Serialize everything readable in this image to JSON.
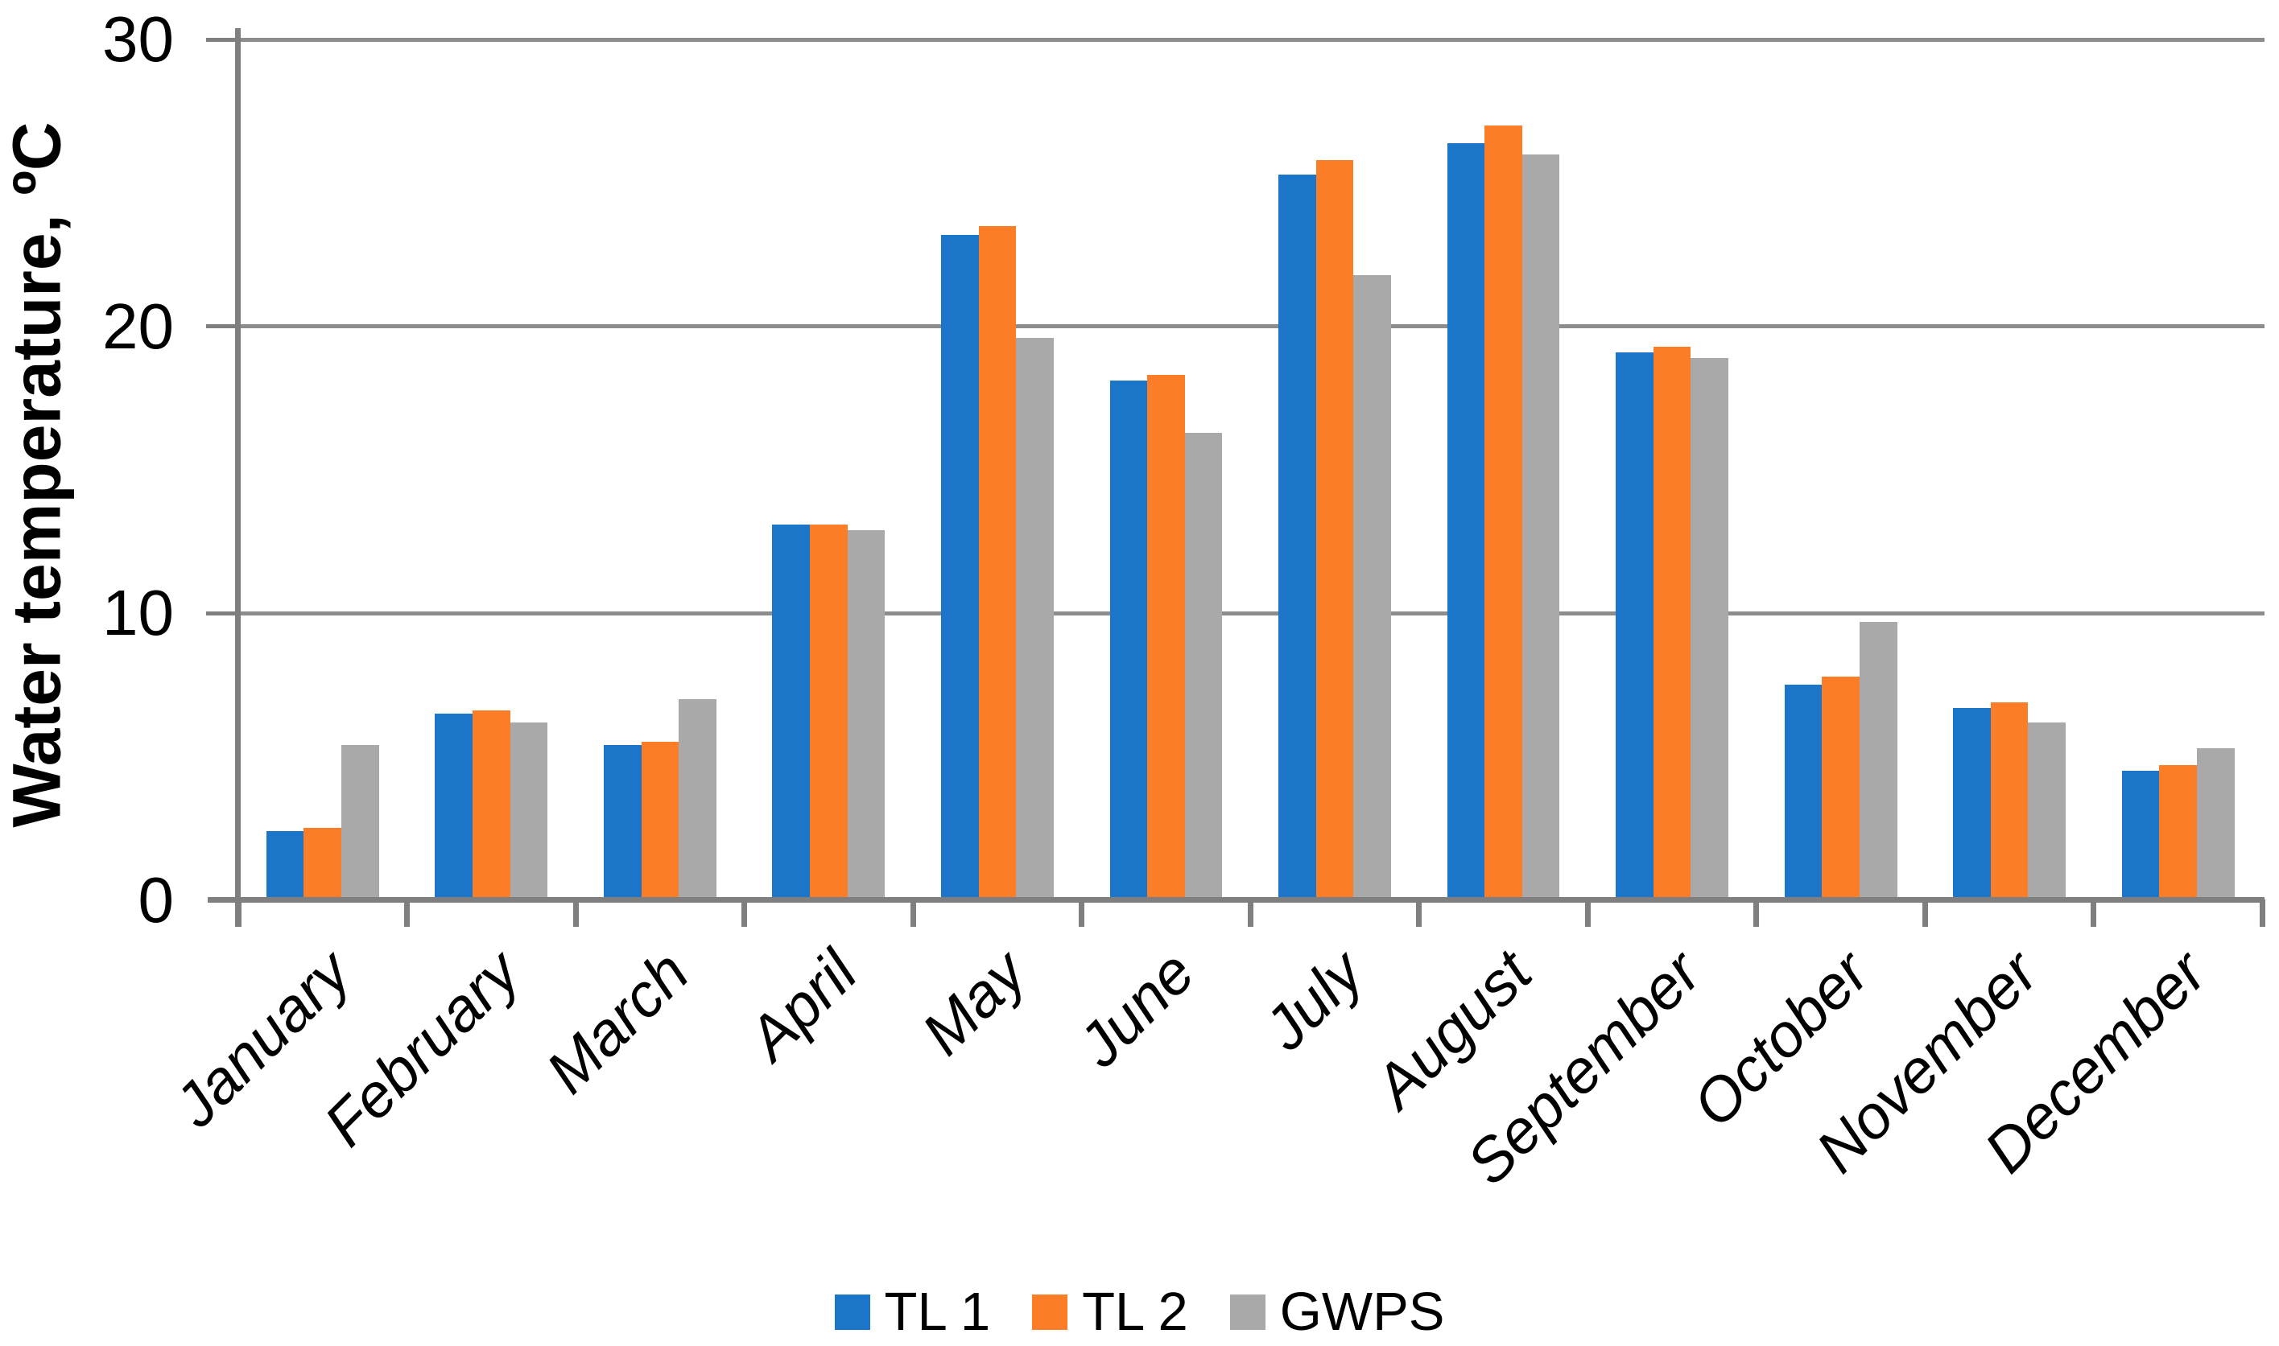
{
  "chart_data": {
    "type": "bar",
    "title": "",
    "xlabel": "",
    "ylabel": "Water temperature, ºC",
    "ylim": [
      0,
      30
    ],
    "yticks": [
      0,
      10,
      20,
      30
    ],
    "ytick_labels": [
      "0",
      "10",
      "20",
      "30"
    ],
    "grid": "horizontal",
    "legend_position": "bottom-center",
    "categories": [
      "January",
      "February",
      "March",
      "April",
      "May",
      "June",
      "July",
      "August",
      "September",
      "October",
      "November",
      "December"
    ],
    "series": [
      {
        "name": "TL 1",
        "color": "#1B75C9",
        "values": [
          2.4,
          6.5,
          5.4,
          13.1,
          23.2,
          18.1,
          25.3,
          26.4,
          19.1,
          7.5,
          6.7,
          4.5
        ]
      },
      {
        "name": "TL 2",
        "color": "#FB7D27",
        "values": [
          2.5,
          6.6,
          5.5,
          13.1,
          23.5,
          18.3,
          25.8,
          27.0,
          19.3,
          7.8,
          6.9,
          4.7
        ]
      },
      {
        "name": "GWPS",
        "color": "#A9A9A9",
        "values": [
          5.4,
          6.2,
          7.0,
          12.9,
          19.6,
          16.3,
          21.8,
          26.0,
          18.9,
          9.7,
          6.2,
          5.3
        ]
      }
    ],
    "colors": {
      "axis": "#7F7F7F",
      "gridline": "#8C8C8C",
      "text": "#000000"
    }
  }
}
